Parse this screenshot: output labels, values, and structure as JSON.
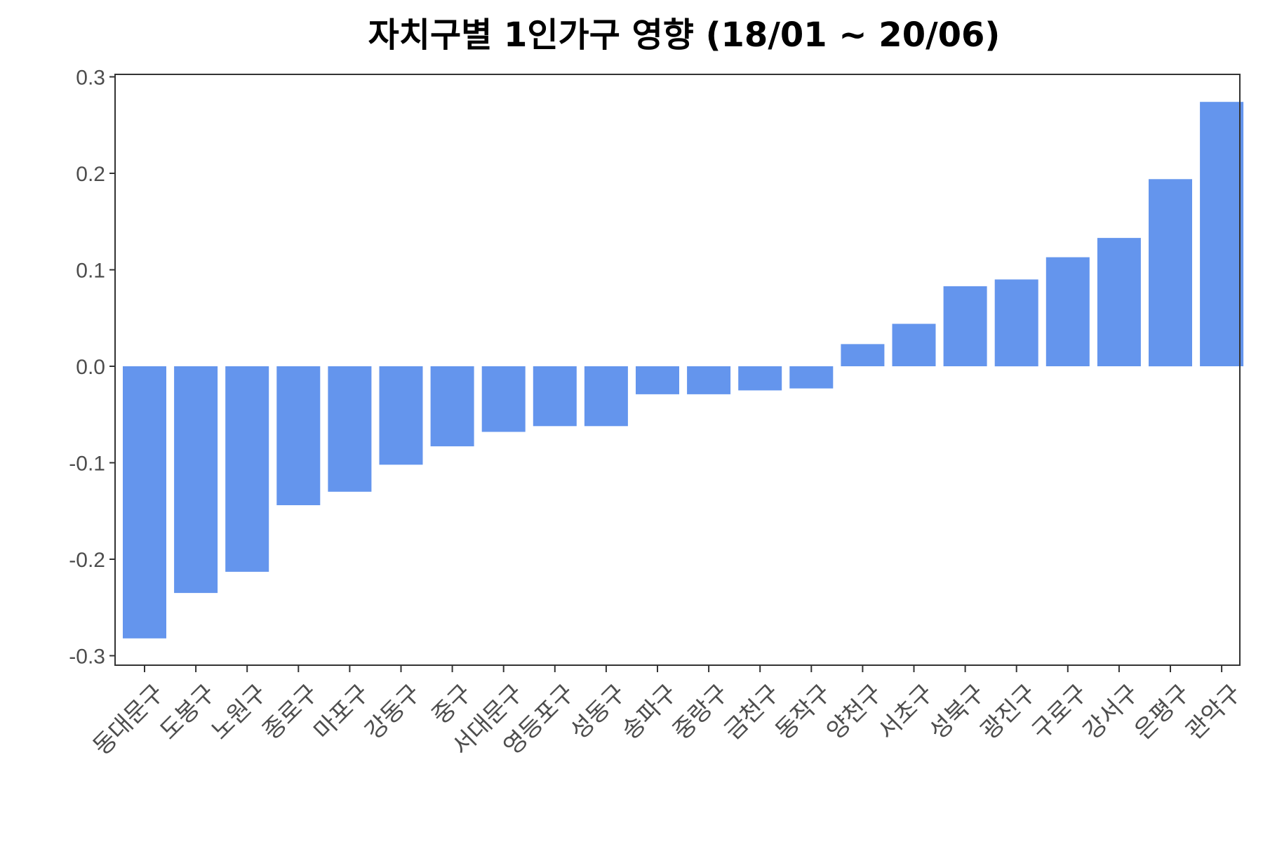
{
  "chart_data": {
    "type": "bar",
    "title": "자치구별 1인가구 영향 (18/01 ~ 20/06)",
    "xlabel": "",
    "ylabel": "",
    "ylim": [
      -0.31,
      0.3
    ],
    "yticks": [
      -0.3,
      -0.2,
      -0.1,
      0.0,
      0.1,
      0.2,
      0.3
    ],
    "ytick_labels": [
      "-0.3",
      "-0.2",
      "-0.1",
      "0.0",
      "0.1",
      "0.2",
      "0.3"
    ],
    "grid": false,
    "bar_color": "#6495ED",
    "categories": [
      "동대문구",
      "도봉구",
      "노원구",
      "종로구",
      "마포구",
      "강동구",
      "중구",
      "서대문구",
      "영등포구",
      "성동구",
      "송파구",
      "중랑구",
      "금천구",
      "동작구",
      "양천구",
      "서초구",
      "성북구",
      "광진구",
      "구로구",
      "강서구",
      "은평구",
      "관악구"
    ],
    "values": [
      -0.282,
      -0.235,
      -0.213,
      -0.144,
      -0.13,
      -0.102,
      -0.083,
      -0.068,
      -0.062,
      -0.062,
      -0.029,
      -0.029,
      -0.025,
      -0.023,
      0.023,
      0.044,
      0.083,
      0.09,
      0.113,
      0.133,
      0.194,
      0.274
    ]
  }
}
